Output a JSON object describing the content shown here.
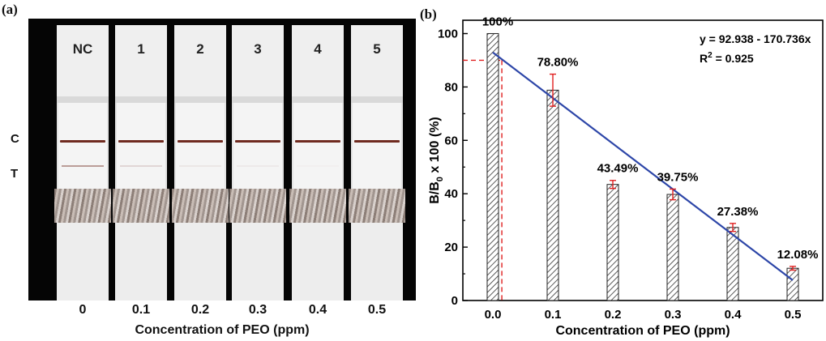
{
  "panel_a": {
    "label": "(a)",
    "strips": [
      {
        "label": "NC",
        "c_line": 1.0,
        "t_line": 0.9
      },
      {
        "label": "1",
        "c_line": 1.0,
        "t_line": 0.3
      },
      {
        "label": "2",
        "c_line": 1.0,
        "t_line": 0.15
      },
      {
        "label": "3",
        "c_line": 1.0,
        "t_line": 0.1
      },
      {
        "label": "4",
        "c_line": 1.0,
        "t_line": 0.05
      },
      {
        "label": "5",
        "c_line": 1.0,
        "t_line": 0.0
      }
    ],
    "c_label": "C",
    "t_label": "T",
    "concentrations": [
      "0",
      "0.1",
      "0.2",
      "0.3",
      "0.4",
      "0.5"
    ],
    "xlabel": "Concentration of PEO (ppm)"
  },
  "chart_data": {
    "type": "bar",
    "panel_label": "(b)",
    "categories": [
      "0.0",
      "0.1",
      "0.2",
      "0.3",
      "0.4",
      "0.5"
    ],
    "x": [
      0.0,
      0.1,
      0.2,
      0.3,
      0.4,
      0.5
    ],
    "values": [
      100,
      78.8,
      43.49,
      39.75,
      27.38,
      12.08
    ],
    "errors": [
      0,
      6,
      1.5,
      2,
      1.5,
      0.7
    ],
    "data_labels": [
      "100%",
      "78.80%",
      "43.49%",
      "39.75%",
      "27.38%",
      "12.08%"
    ],
    "xlabel": "Concentration of PEO (ppm)",
    "ylabel_parts": {
      "pre": "B/B",
      "sub": "0",
      "post": " x 100 (%)"
    },
    "xlim": [
      -0.05,
      0.55
    ],
    "ylim": [
      0,
      105
    ],
    "yticks": [
      0,
      20,
      40,
      60,
      80,
      100
    ],
    "fit": {
      "intercept": 92.938,
      "slope": -170.736,
      "x_range": [
        0.0,
        0.5
      ],
      "equation_text": "y = 92.938 - 170.736x",
      "r2_pre": "R",
      "r2_sup": "2",
      "r2_post": " = 0.925"
    },
    "reference_point": {
      "x": 0.015,
      "y": 90
    },
    "grid": false,
    "colors": {
      "bar_hatch": "#333333",
      "fit_line": "#2d46a8",
      "error_bar": "#e02020",
      "reference_line": "#e02020"
    }
  }
}
